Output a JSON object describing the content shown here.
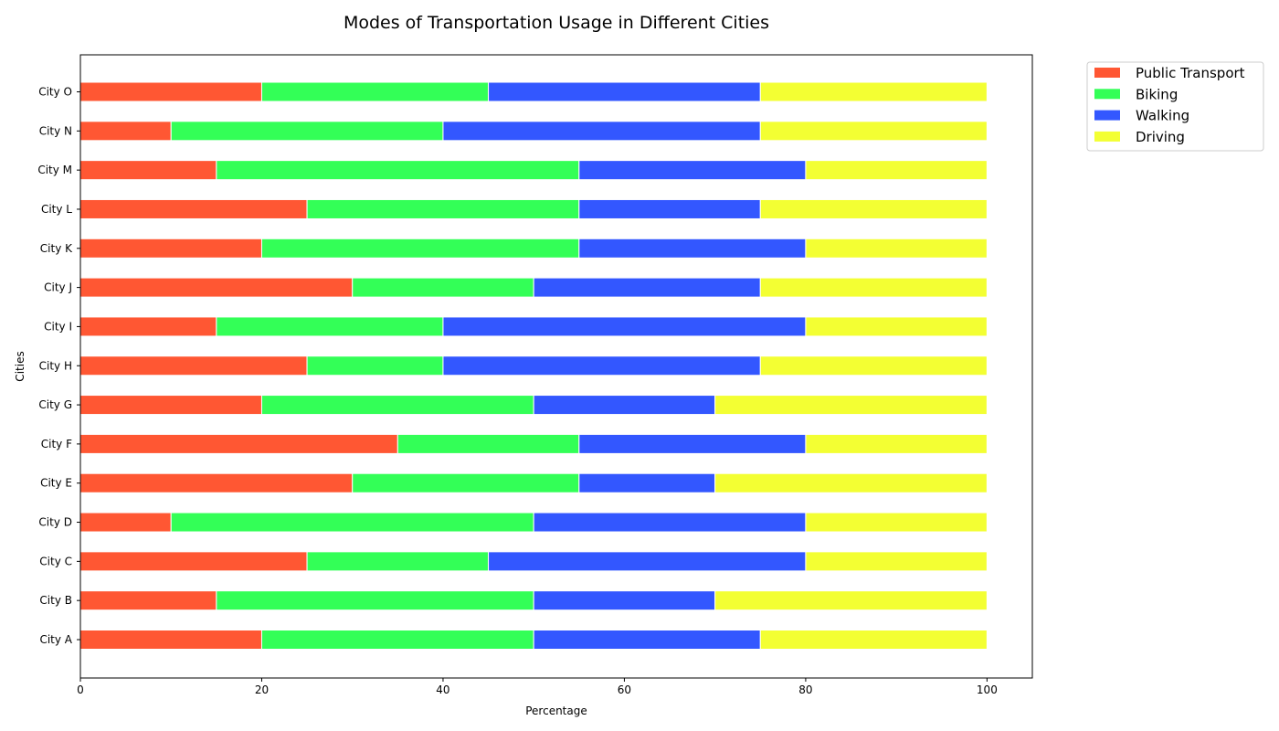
{
  "chart_data": {
    "type": "bar",
    "orientation": "horizontal",
    "stacked": true,
    "title": "Modes of Transportation Usage in Different Cities",
    "xlabel": "Percentage",
    "ylabel": "Cities",
    "xlim": [
      0,
      105
    ],
    "x_ticks": [
      0,
      20,
      40,
      60,
      80,
      100
    ],
    "grid": false,
    "legend_placement": "upper-right-outside",
    "categories": [
      "City A",
      "City B",
      "City C",
      "City D",
      "City E",
      "City F",
      "City G",
      "City H",
      "City I",
      "City J",
      "City K",
      "City L",
      "City M",
      "City N",
      "City O"
    ],
    "series": [
      {
        "name": "Public Transport",
        "color": "#ff5733",
        "values": [
          20,
          15,
          25,
          10,
          30,
          35,
          20,
          25,
          15,
          30,
          20,
          25,
          15,
          10,
          20
        ]
      },
      {
        "name": "Biking",
        "color": "#33ff57",
        "values": [
          30,
          35,
          20,
          40,
          25,
          20,
          30,
          15,
          25,
          20,
          35,
          30,
          40,
          30,
          25
        ]
      },
      {
        "name": "Walking",
        "color": "#3357ff",
        "values": [
          25,
          20,
          35,
          30,
          15,
          25,
          20,
          35,
          40,
          25,
          25,
          20,
          25,
          35,
          30
        ]
      },
      {
        "name": "Driving",
        "color": "#f3ff33",
        "values": [
          25,
          30,
          20,
          20,
          30,
          20,
          30,
          25,
          20,
          25,
          20,
          25,
          20,
          25,
          25
        ]
      }
    ]
  }
}
